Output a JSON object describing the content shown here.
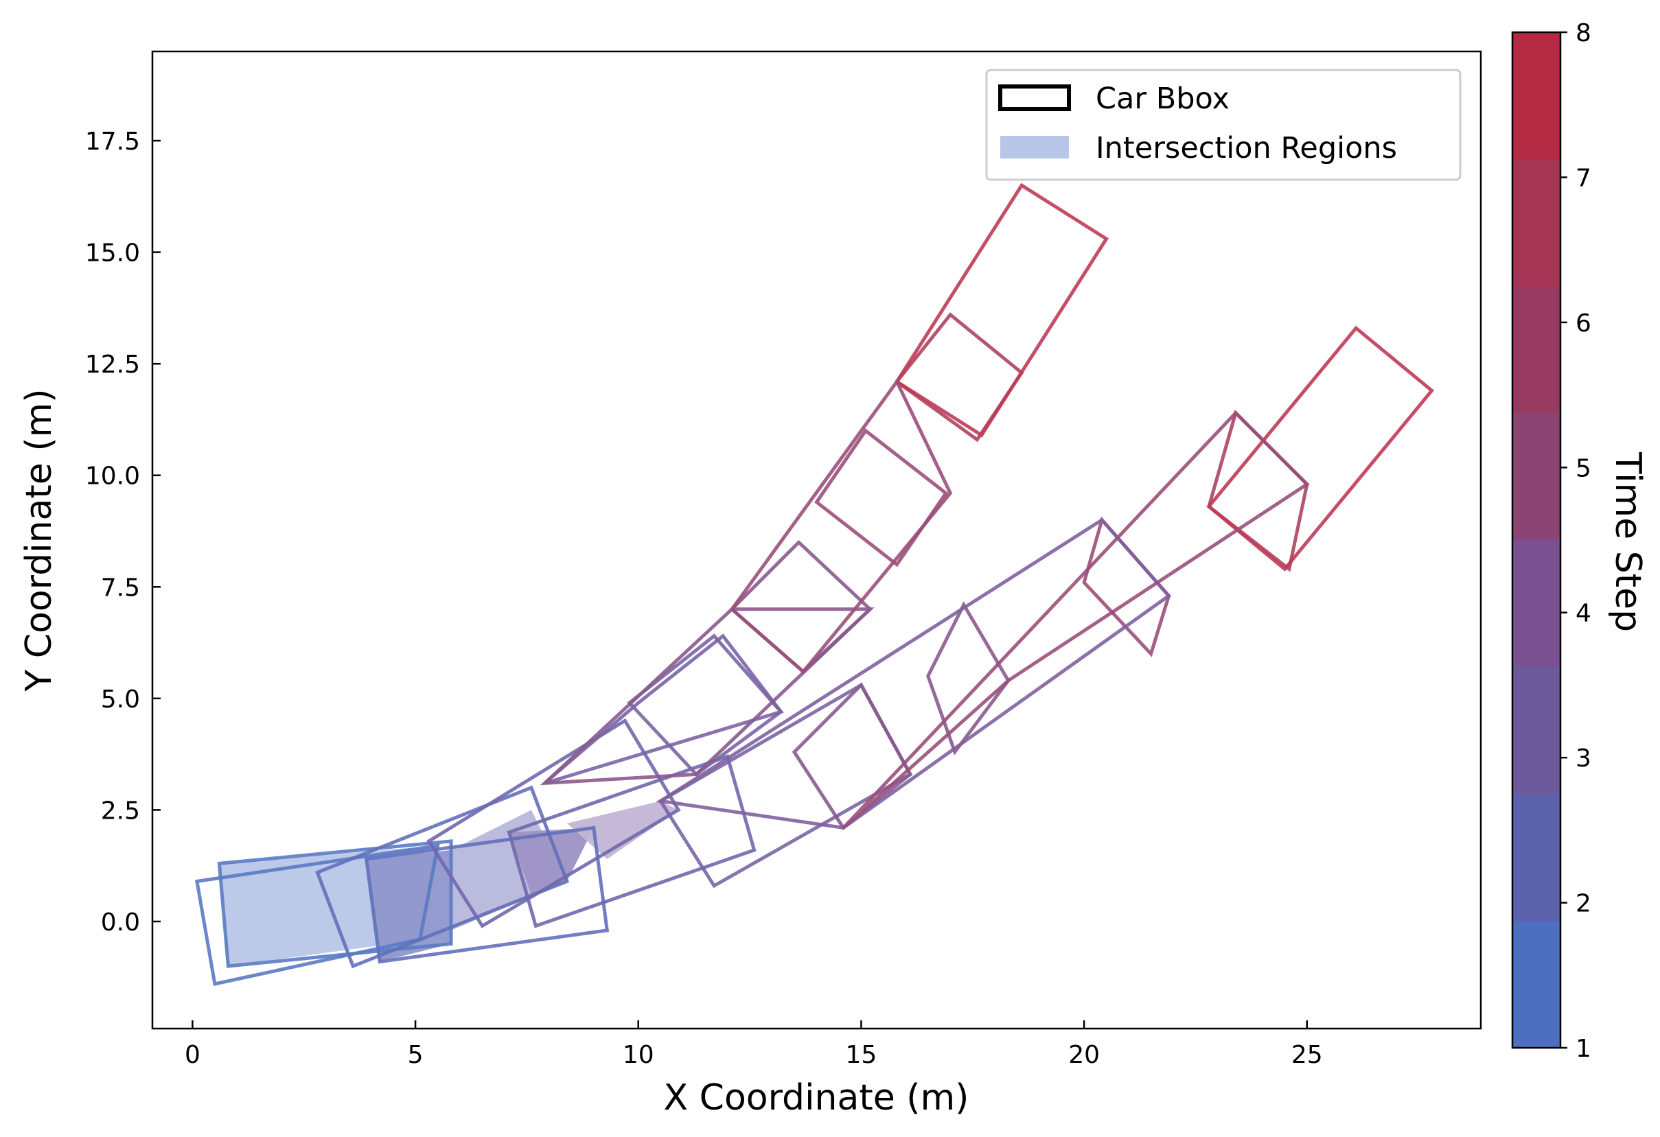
{
  "chart_data": {
    "type": "scatter",
    "subtype": "oriented-bounding-boxes",
    "title": "",
    "xlabel": "X Coordinate (m)",
    "ylabel": "Y Coordinate (m)",
    "xlim": [
      -0.9,
      28.9
    ],
    "ylim": [
      -2.4,
      19.5
    ],
    "xticks": [
      0,
      5,
      10,
      15,
      20,
      25
    ],
    "yticks": [
      0.0,
      2.5,
      5.0,
      7.5,
      10.0,
      12.5,
      15.0,
      17.5
    ],
    "xtick_labels": [
      "0",
      "5",
      "10",
      "15",
      "20",
      "25"
    ],
    "ytick_labels": [
      "0.0",
      "2.5",
      "5.0",
      "7.5",
      "10.0",
      "12.5",
      "15.0",
      "17.5"
    ],
    "legend": {
      "position": "top-right",
      "entries": [
        {
          "label": "Car Bbox",
          "style": "outline",
          "color": "#000000"
        },
        {
          "label": "Intersection Regions",
          "style": "filled",
          "color": "#b8c6e8"
        }
      ]
    },
    "colorbar": {
      "label": "Time Step",
      "min": 1,
      "max": 8,
      "ticks": [
        1,
        2,
        3,
        4,
        5,
        6,
        7,
        8
      ],
      "bands": [
        "#4e6fc0",
        "#5b62ab",
        "#6a5a9c",
        "#7a5090",
        "#8a4575",
        "#98395f",
        "#a63455",
        "#b42a42"
      ]
    },
    "boxes": [
      {
        "vehicle": "A",
        "step": 1,
        "color": "#5a7ac4",
        "corners": [
          [
            0.1,
            0.9
          ],
          [
            5.5,
            1.7
          ],
          [
            5.1,
            -0.4
          ],
          [
            0.5,
            -1.4
          ]
        ]
      },
      {
        "vehicle": "B",
        "step": 1,
        "color": "#5a7ac4",
        "corners": [
          [
            0.6,
            1.3
          ],
          [
            5.8,
            1.8
          ],
          [
            5.8,
            -0.5
          ],
          [
            0.8,
            -1.0
          ]
        ]
      },
      {
        "vehicle": "A",
        "step": 2,
        "color": "#6270bb",
        "corners": [
          [
            2.8,
            1.1
          ],
          [
            7.6,
            3.0
          ],
          [
            8.4,
            0.9
          ],
          [
            3.6,
            -1.0
          ]
        ]
      },
      {
        "vehicle": "B",
        "step": 2,
        "color": "#6270bb",
        "corners": [
          [
            3.9,
            1.4
          ],
          [
            9.0,
            2.1
          ],
          [
            9.3,
            -0.2
          ],
          [
            4.2,
            -0.9
          ]
        ]
      },
      {
        "vehicle": "A",
        "step": 3,
        "color": "#7068ad",
        "corners": [
          [
            5.3,
            1.8
          ],
          [
            9.7,
            4.5
          ],
          [
            10.9,
            2.5
          ],
          [
            6.5,
            -0.1
          ]
        ]
      },
      {
        "vehicle": "B",
        "step": 3,
        "color": "#7068ad",
        "corners": [
          [
            7.1,
            2.0
          ],
          [
            12.0,
            3.7
          ],
          [
            12.6,
            1.6
          ],
          [
            7.7,
            -0.1
          ]
        ]
      },
      {
        "vehicle": "A",
        "step": 4,
        "color": "#7a64a4",
        "corners": [
          [
            7.9,
            3.1
          ],
          [
            13.2,
            4.7
          ],
          [
            11.9,
            6.4
          ],
          [
            10.0,
            4.9
          ]
        ]
      },
      {
        "vehicle": "A",
        "step": 4,
        "color": "#7a64a4",
        "corners": [
          [
            9.8,
            4.9
          ],
          [
            11.7,
            6.4
          ],
          [
            13.2,
            4.7
          ],
          [
            11.3,
            3.3
          ]
        ]
      },
      {
        "vehicle": "B",
        "step": 4,
        "color": "#7a64a4",
        "corners": [
          [
            10.5,
            2.7
          ],
          [
            15.0,
            5.3
          ],
          [
            16.1,
            3.3
          ],
          [
            11.7,
            0.8
          ]
        ]
      },
      {
        "vehicle": "A",
        "step": 5,
        "color": "#8a5a8e",
        "corners": [
          [
            12.1,
            7.0
          ],
          [
            13.6,
            8.5
          ],
          [
            15.2,
            7.0
          ],
          [
            13.7,
            5.6
          ]
        ]
      },
      {
        "vehicle": "B",
        "step": 5,
        "color": "#8a5a8e",
        "corners": [
          [
            13.5,
            3.8
          ],
          [
            15.0,
            5.3
          ],
          [
            16.1,
            3.3
          ],
          [
            14.6,
            2.1
          ]
        ]
      },
      {
        "vehicle": "B",
        "step": 5,
        "color": "#8a5a8e",
        "corners": [
          [
            16.5,
            5.5
          ],
          [
            17.3,
            7.1
          ],
          [
            18.3,
            5.4
          ],
          [
            17.1,
            3.8
          ]
        ]
      },
      {
        "vehicle": "A",
        "step": 6,
        "color": "#9a4f7a",
        "corners": [
          [
            14.0,
            9.4
          ],
          [
            15.1,
            11.0
          ],
          [
            16.9,
            9.6
          ],
          [
            15.8,
            8.0
          ]
        ]
      },
      {
        "vehicle": "B",
        "step": 6,
        "color": "#9a4f7a",
        "corners": [
          [
            20.0,
            7.6
          ],
          [
            20.4,
            9.0
          ],
          [
            21.9,
            7.3
          ],
          [
            21.5,
            6.0
          ]
        ]
      },
      {
        "vehicle": "A",
        "step": 7,
        "color": "#ad4260",
        "corners": [
          [
            15.8,
            12.1
          ],
          [
            17.0,
            13.6
          ],
          [
            18.6,
            12.3
          ],
          [
            17.6,
            10.8
          ]
        ]
      },
      {
        "vehicle": "B",
        "step": 7,
        "color": "#ad4260",
        "corners": [
          [
            22.8,
            9.3
          ],
          [
            23.4,
            11.4
          ],
          [
            25.0,
            9.8
          ],
          [
            24.6,
            7.9
          ]
        ]
      },
      {
        "vehicle": "A",
        "step": 8,
        "color": "#bf3a55",
        "corners": [
          [
            15.8,
            12.1
          ],
          [
            18.6,
            16.5
          ],
          [
            20.5,
            15.3
          ],
          [
            17.7,
            10.9
          ]
        ]
      },
      {
        "vehicle": "B",
        "step": 8,
        "color": "#bf3a55",
        "corners": [
          [
            22.8,
            9.3
          ],
          [
            26.1,
            13.3
          ],
          [
            27.8,
            11.9
          ],
          [
            24.5,
            7.9
          ]
        ]
      }
    ],
    "long_boxes": [
      {
        "vehicle": "B",
        "step": 4,
        "color": "#8060a0",
        "corners": [
          [
            10.5,
            2.7
          ],
          [
            20.4,
            9.0
          ],
          [
            21.9,
            7.3
          ],
          [
            14.6,
            2.1
          ]
        ]
      },
      {
        "vehicle": "A",
        "step": 5,
        "color": "#8a5a8e",
        "corners": [
          [
            7.9,
            3.1
          ],
          [
            12.1,
            7.0
          ],
          [
            15.2,
            7.0
          ],
          [
            11.3,
            3.3
          ]
        ]
      },
      {
        "vehicle": "B",
        "step": 6,
        "color": "#9a4f7a",
        "corners": [
          [
            14.6,
            2.1
          ],
          [
            23.4,
            11.4
          ],
          [
            25.0,
            9.8
          ],
          [
            18.3,
            5.4
          ]
        ]
      },
      {
        "vehicle": "A",
        "step": 6,
        "color": "#9a4f7a",
        "corners": [
          [
            12.1,
            7.0
          ],
          [
            15.8,
            12.1
          ],
          [
            17.0,
            9.6
          ],
          [
            13.7,
            5.6
          ]
        ]
      }
    ],
    "intersections": [
      {
        "color": "#b8c6e8",
        "opacity": 0.95,
        "corners": [
          [
            0.6,
            1.3
          ],
          [
            5.5,
            1.7
          ],
          [
            5.2,
            -0.4
          ],
          [
            0.8,
            -1.0
          ]
        ]
      },
      {
        "color": "#8e97cc",
        "opacity": 0.95,
        "corners": [
          [
            3.9,
            1.4
          ],
          [
            5.8,
            1.6
          ],
          [
            5.8,
            -0.5
          ],
          [
            4.2,
            -0.9
          ]
        ]
      },
      {
        "color": "#b7b7dc",
        "opacity": 0.95,
        "corners": [
          [
            5.8,
            1.6
          ],
          [
            7.6,
            2.5
          ],
          [
            8.4,
            0.9
          ],
          [
            5.8,
            -0.2
          ]
        ]
      },
      {
        "color": "#9d92c4",
        "opacity": 0.95,
        "corners": [
          [
            7.1,
            2.0
          ],
          [
            9.0,
            2.1
          ],
          [
            8.4,
            0.9
          ],
          [
            7.6,
            0.6
          ]
        ]
      },
      {
        "color": "#c3b5d6",
        "opacity": 0.95,
        "corners": [
          [
            8.4,
            2.2
          ],
          [
            10.5,
            2.7
          ],
          [
            10.9,
            2.5
          ],
          [
            9.3,
            1.4
          ]
        ]
      }
    ]
  }
}
